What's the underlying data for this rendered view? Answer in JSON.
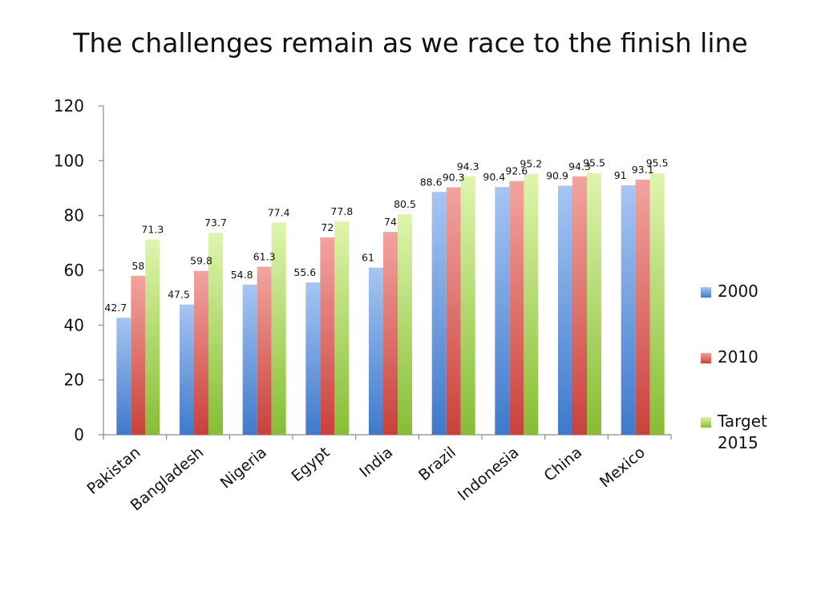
{
  "title": "The challenges remain as we race to the finish line",
  "colors": {
    "s2000": "#5b8fd6",
    "s2010": "#d9534f",
    "target": "#9ccc4a",
    "axis": "#8c8c8c"
  },
  "chart_data": {
    "type": "bar",
    "categories": [
      "Pakistan",
      "Bangladesh",
      "Nigeria",
      "Egypt",
      "India",
      "Brazil",
      "Indonesia",
      "China",
      "Mexico"
    ],
    "series": [
      {
        "name": "2000",
        "values": [
          42.7,
          47.5,
          54.8,
          55.6,
          61,
          88.6,
          90.4,
          90.9,
          91
        ]
      },
      {
        "name": "2010",
        "values": [
          58,
          59.8,
          61.3,
          72,
          74,
          90.3,
          92.6,
          94.3,
          93.1
        ]
      },
      {
        "name": "Target 2015",
        "values": [
          71.3,
          73.7,
          77.4,
          77.8,
          80.5,
          94.3,
          95.2,
          95.5,
          95.5
        ]
      }
    ],
    "ylim": [
      0,
      120
    ],
    "yticks": [
      0,
      20,
      40,
      60,
      80,
      100,
      120
    ],
    "legend": {
      "position": "right",
      "labels": [
        "2000",
        "2010",
        "Target\n2015"
      ]
    },
    "grid": false
  }
}
